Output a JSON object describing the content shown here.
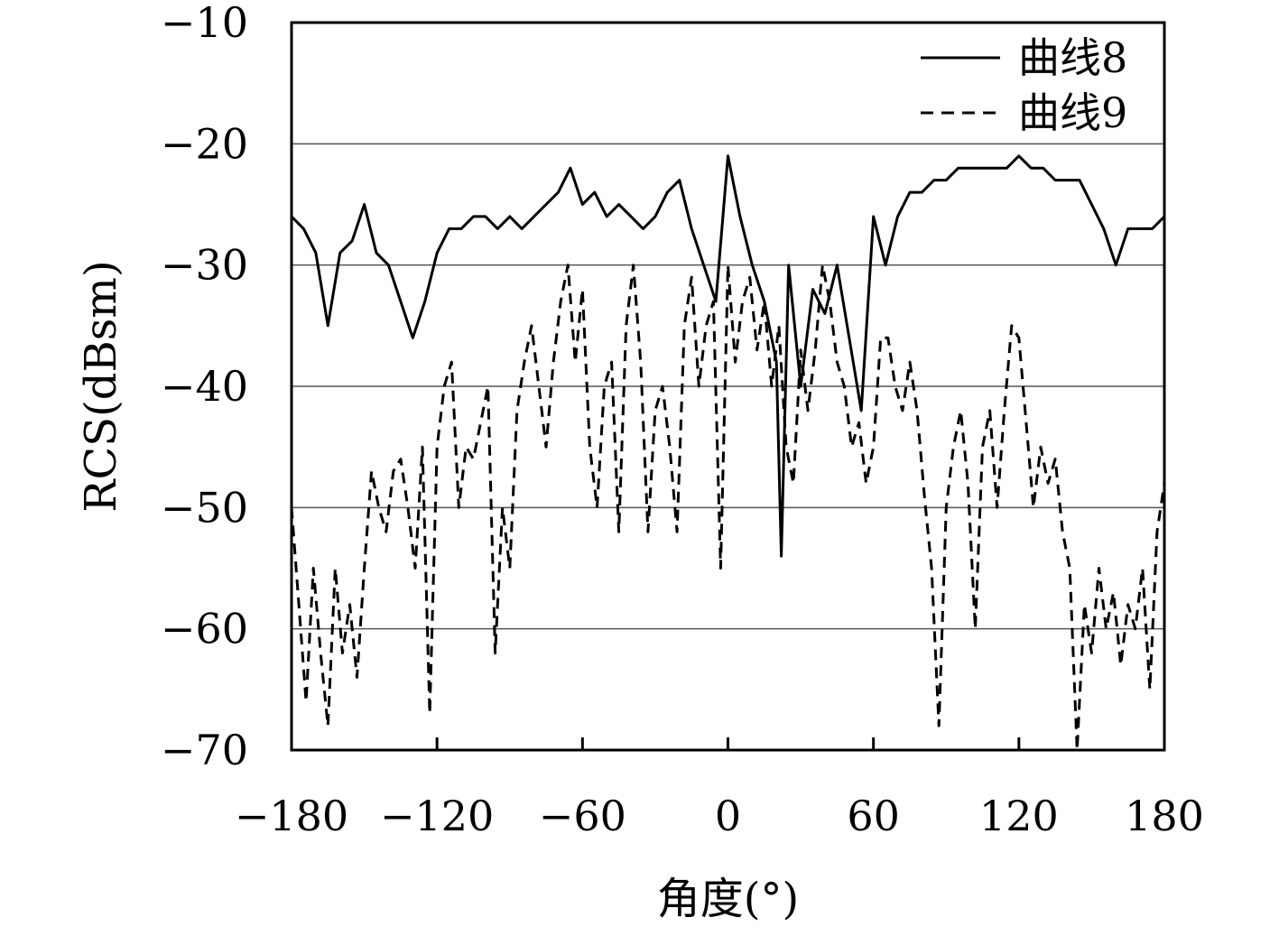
{
  "chart_data": {
    "type": "line",
    "title": "",
    "xlabel": "角度(°)",
    "ylabel": "RCS(dBsm)",
    "xlim": [
      -180,
      180
    ],
    "ylim": [
      -70,
      -10
    ],
    "xticks": [
      -180,
      -120,
      -60,
      0,
      60,
      120,
      180
    ],
    "xtick_labels": [
      "−180",
      "−120",
      "−60",
      "0",
      "60",
      "120",
      "180"
    ],
    "yticks": [
      -10,
      -20,
      -30,
      -40,
      -50,
      -60,
      -70
    ],
    "ytick_labels": [
      "−10",
      "−20",
      "−30",
      "−40",
      "−50",
      "−60",
      "−70"
    ],
    "grid": "horizontal",
    "legend_position": "top-right",
    "series": [
      {
        "name": "曲线8",
        "style": "solid",
        "x": [
          -180,
          -175,
          -170,
          -165,
          -160,
          -155,
          -150,
          -145,
          -140,
          -135,
          -130,
          -125,
          -120,
          -115,
          -110,
          -105,
          -100,
          -95,
          -90,
          -85,
          -80,
          -75,
          -70,
          -65,
          -60,
          -55,
          -50,
          -45,
          -40,
          -35,
          -30,
          -25,
          -20,
          -15,
          -10,
          -5,
          0,
          5,
          10,
          15,
          20,
          22,
          25,
          30,
          35,
          40,
          45,
          50,
          55,
          60,
          65,
          70,
          75,
          80,
          85,
          90,
          95,
          100,
          105,
          110,
          115,
          120,
          125,
          130,
          135,
          140,
          145,
          150,
          155,
          160,
          165,
          170,
          175,
          180
        ],
        "y": [
          -26,
          -27,
          -29,
          -35,
          -29,
          -28,
          -25,
          -29,
          -30,
          -33,
          -36,
          -33,
          -29,
          -27,
          -27,
          -26,
          -26,
          -27,
          -26,
          -27,
          -26,
          -25,
          -24,
          -22,
          -25,
          -24,
          -26,
          -25,
          -26,
          -27,
          -26,
          -24,
          -23,
          -27,
          -30,
          -33,
          -21,
          -26,
          -30,
          -33,
          -38,
          -54,
          -30,
          -40,
          -32,
          -34,
          -30,
          -36,
          -42,
          -26,
          -30,
          -26,
          -24,
          -24,
          -23,
          -23,
          -22,
          -22,
          -22,
          -22,
          -22,
          -21,
          -22,
          -22,
          -23,
          -23,
          -23,
          -25,
          -27,
          -30,
          -27,
          -27,
          -27,
          -26
        ]
      },
      {
        "name": "曲线9",
        "style": "dashed",
        "x": [
          -180,
          -177,
          -174,
          -171,
          -168,
          -165,
          -162,
          -159,
          -156,
          -153,
          -150,
          -147,
          -144,
          -141,
          -138,
          -135,
          -132,
          -129,
          -126,
          -123,
          -120,
          -117,
          -114,
          -111,
          -108,
          -105,
          -102,
          -99,
          -96,
          -93,
          -90,
          -87,
          -84,
          -81,
          -78,
          -75,
          -72,
          -69,
          -66,
          -63,
          -60,
          -57,
          -54,
          -51,
          -48,
          -45,
          -42,
          -39,
          -36,
          -33,
          -30,
          -27,
          -24,
          -21,
          -18,
          -15,
          -12,
          -9,
          -6,
          -3,
          0,
          3,
          6,
          9,
          12,
          15,
          18,
          21,
          24,
          27,
          30,
          33,
          36,
          39,
          42,
          45,
          48,
          51,
          54,
          57,
          60,
          63,
          66,
          69,
          72,
          75,
          78,
          81,
          84,
          87,
          90,
          93,
          96,
          99,
          102,
          105,
          108,
          111,
          114,
          117,
          120,
          123,
          126,
          129,
          132,
          135,
          138,
          141,
          144,
          147,
          150,
          153,
          156,
          159,
          162,
          165,
          168,
          171,
          174,
          177,
          180
        ],
        "y": [
          -50,
          -58,
          -66,
          -55,
          -62,
          -68,
          -55,
          -62,
          -58,
          -64,
          -55,
          -47,
          -50,
          -52,
          -47,
          -46,
          -50,
          -55,
          -45,
          -67,
          -45,
          -40,
          -38,
          -50,
          -45,
          -46,
          -43,
          -40,
          -62,
          -50,
          -55,
          -42,
          -38,
          -35,
          -40,
          -45,
          -38,
          -33,
          -30,
          -38,
          -32,
          -45,
          -50,
          -40,
          -38,
          -52,
          -35,
          -30,
          -38,
          -52,
          -42,
          -40,
          -45,
          -52,
          -35,
          -31,
          -40,
          -35,
          -33,
          -55,
          -30,
          -38,
          -33,
          -31,
          -37,
          -33,
          -40,
          -35,
          -45,
          -48,
          -37,
          -42,
          -37,
          -30,
          -33,
          -38,
          -40,
          -45,
          -43,
          -48,
          -45,
          -36,
          -36,
          -40,
          -42,
          -38,
          -42,
          -49,
          -55,
          -68,
          -50,
          -45,
          -42,
          -48,
          -60,
          -45,
          -42,
          -50,
          -42,
          -35,
          -36,
          -43,
          -50,
          -45,
          -48,
          -46,
          -52,
          -55,
          -70,
          -58,
          -62,
          -55,
          -60,
          -57,
          -63,
          -58,
          -60,
          -55,
          -65,
          -52,
          -48
        ]
      }
    ]
  }
}
